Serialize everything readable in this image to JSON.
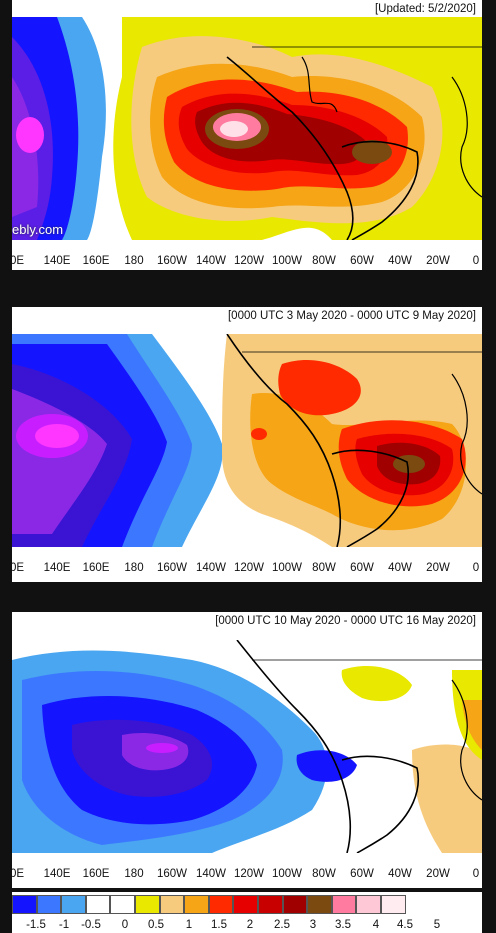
{
  "panels": [
    {
      "title": "[Updated: 5/2/2020]",
      "watermark": "ebly.com"
    },
    {
      "title": "[0000 UTC 3 May 2020 - 0000 UTC 9 May 2020]"
    },
    {
      "title": "[0000 UTC 10 May 2020 - 0000 UTC 16 May 2020]"
    }
  ],
  "longitude_labels": [
    "0E",
    "140E",
    "160E",
    "180",
    "160W",
    "140W",
    "120W",
    "100W",
    "80W",
    "60W",
    "40W",
    "20W",
    "0"
  ],
  "legend": {
    "labels": [
      "-1.5",
      "-1",
      "-0.5",
      "0",
      "0.5",
      "1",
      "1.5",
      "2",
      "2.5",
      "3",
      "3.5",
      "4",
      "4.5",
      "5"
    ],
    "colors": [
      "#1414ff",
      "#3c78ff",
      "#4aa6f0",
      "#ffffff",
      "#ffffff",
      "#e8e800",
      "#f7cb7e",
      "#f5a516",
      "#ff2a00",
      "#e60000",
      "#c80000",
      "#a00000",
      "#7a4a10",
      "#ff7ca0",
      "#ffc8d6",
      "#ffecf0"
    ]
  }
}
